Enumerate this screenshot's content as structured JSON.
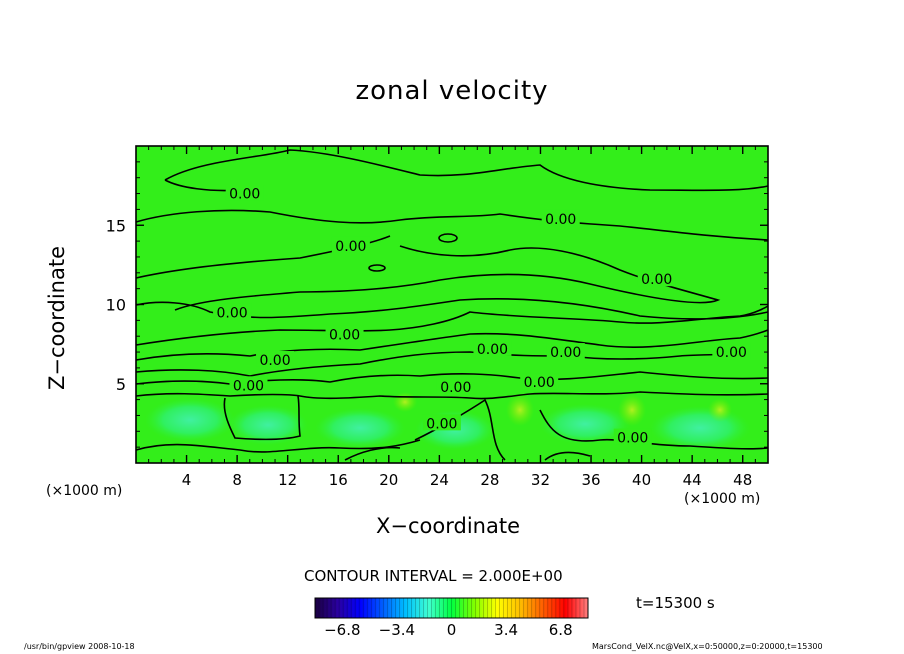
{
  "chart_data": {
    "type": "heatmap",
    "title": "zonal velocity",
    "xlabel": "X−coordinate",
    "ylabel": "Z−coordinate",
    "x_unit_left": "(×1000 m)",
    "x_unit_right": "(×1000 m)",
    "xlim": [
      0,
      50
    ],
    "ylim": [
      0,
      20
    ],
    "x_ticks": [
      "4",
      "8",
      "12",
      "16",
      "20",
      "24",
      "28",
      "32",
      "36",
      "40",
      "44",
      "48"
    ],
    "x_tick_values": [
      4,
      8,
      12,
      16,
      20,
      24,
      28,
      32,
      36,
      40,
      44,
      48
    ],
    "y_ticks": [
      "5",
      "10",
      "15"
    ],
    "y_tick_values": [
      5,
      10,
      15
    ],
    "contour_labels": [
      {
        "text": "0.00",
        "x": 8.6,
        "z": 17.0
      },
      {
        "text": "0.00",
        "x": 33.6,
        "z": 15.4
      },
      {
        "text": "0.00",
        "x": 17.0,
        "z": 13.7
      },
      {
        "text": "0.00",
        "x": 41.2,
        "z": 11.6
      },
      {
        "text": "0.00",
        "x": 7.6,
        "z": 9.5
      },
      {
        "text": "0.00",
        "x": 16.5,
        "z": 8.1
      },
      {
        "text": "0.00",
        "x": 28.2,
        "z": 7.2
      },
      {
        "text": "0.00",
        "x": 34.0,
        "z": 7.0
      },
      {
        "text": "0.00",
        "x": 47.1,
        "z": 7.0
      },
      {
        "text": "0.00",
        "x": 11.0,
        "z": 6.5
      },
      {
        "text": "0.00",
        "x": 8.9,
        "z": 4.9
      },
      {
        "text": "0.00",
        "x": 25.3,
        "z": 4.8
      },
      {
        "text": "0.00",
        "x": 31.9,
        "z": 5.1
      },
      {
        "text": "0.00",
        "x": 24.2,
        "z": 2.5
      },
      {
        "text": "0.00",
        "x": 39.3,
        "z": 1.6
      }
    ],
    "contour_interval_label": "CONTOUR INTERVAL =  2.000E+00",
    "time_label": "t=15300  s",
    "colorbar": {
      "min": -8.5,
      "max": 8.5,
      "ticks": [
        "−6.8",
        "−3.4",
        "0",
        "3.4",
        "6.8"
      ],
      "tick_values": [
        -6.8,
        -3.4,
        0,
        3.4,
        6.8
      ],
      "colors": [
        "#1a0040",
        "#2a00a0",
        "#0000ff",
        "#0060ff",
        "#00c0ff",
        "#40ffd0",
        "#00ff40",
        "#80ff00",
        "#ffff00",
        "#ffc000",
        "#ff6000",
        "#ff0000",
        "#ff8080"
      ]
    },
    "grid": false,
    "legend": "colorbar-bottom",
    "footer_left": "/usr/bin/gpview   2008-10-18",
    "footer_right": "MarsCond_VelX.nc@VelX,x=0:50000,z=0:20000,t=15300"
  }
}
